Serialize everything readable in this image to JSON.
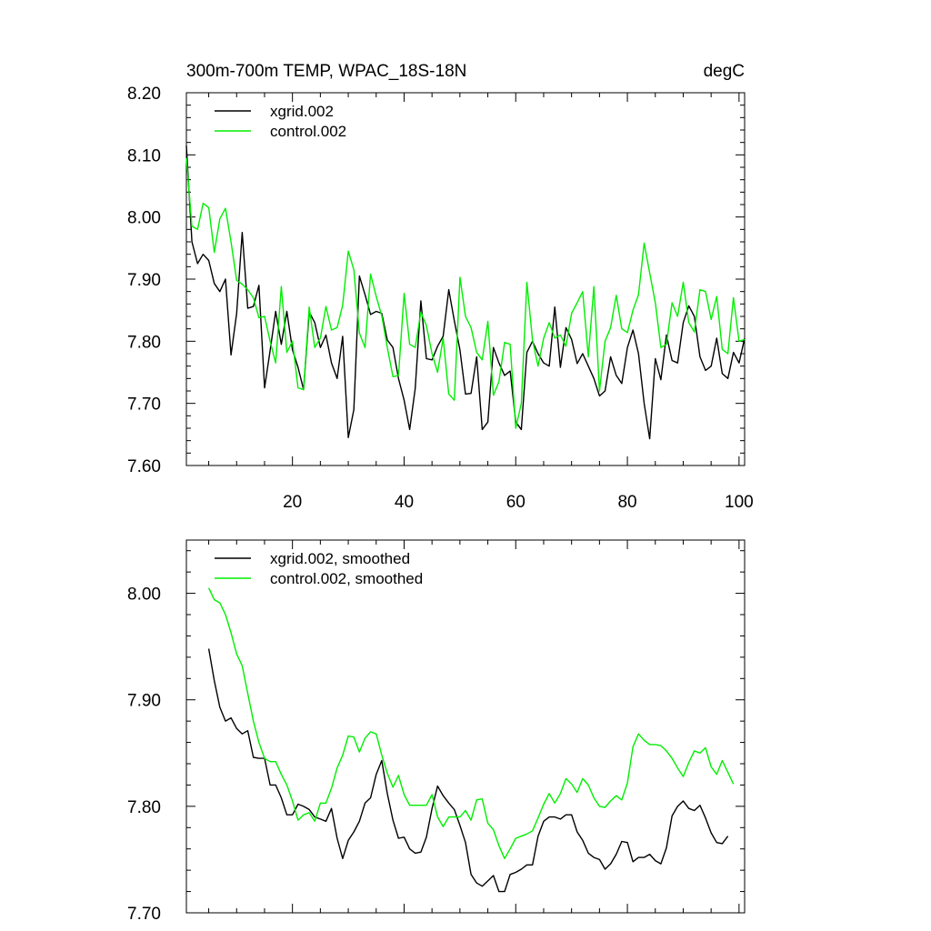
{
  "chart_data": [
    {
      "type": "line",
      "title": "300m-700m TEMP, WPAC_18S-18N",
      "units": "degC",
      "xlim": [
        1,
        101
      ],
      "ylim": [
        7.6,
        8.2
      ],
      "x_ticks": [
        20,
        40,
        60,
        80,
        100
      ],
      "x_tick_labels": [
        "20",
        "40",
        "60",
        "80",
        "100"
      ],
      "y_ticks": [
        7.6,
        7.7,
        7.8,
        7.9,
        8.0,
        8.1,
        8.2
      ],
      "y_tick_labels": [
        "7.60",
        "7.70",
        "7.80",
        "7.90",
        "8.00",
        "8.10",
        "8.20"
      ],
      "legend_position": "top-left",
      "series": [
        {
          "name": "xgrid.002",
          "color": "#000000",
          "x_start": 1,
          "values": [
            8.115,
            7.96,
            7.925,
            7.94,
            7.93,
            7.893,
            7.88,
            7.9,
            7.778,
            7.845,
            7.975,
            7.853,
            7.856,
            7.89,
            7.725,
            7.785,
            7.848,
            7.795,
            7.848,
            7.786,
            7.758,
            7.722,
            7.847,
            7.83,
            7.79,
            7.81,
            7.765,
            7.74,
            7.808,
            7.645,
            7.69,
            7.905,
            7.875,
            7.843,
            7.848,
            7.845,
            7.802,
            7.79,
            7.74,
            7.705,
            7.658,
            7.724,
            7.865,
            7.772,
            7.77,
            7.792,
            7.808,
            7.883,
            7.833,
            7.786,
            7.715,
            7.716,
            7.775,
            7.658,
            7.67,
            7.79,
            7.765,
            7.745,
            7.752,
            7.67,
            7.658,
            7.782,
            7.8,
            7.78,
            7.765,
            7.76,
            7.855,
            7.758,
            7.822,
            7.803,
            7.764,
            7.78,
            7.76,
            7.74,
            7.712,
            7.72,
            7.775,
            7.745,
            7.732,
            7.79,
            7.818,
            7.78,
            7.7,
            7.643,
            7.772,
            7.738,
            7.81,
            7.769,
            7.765,
            7.83,
            7.857,
            7.84,
            7.775,
            7.753,
            7.76,
            7.805,
            7.748,
            7.74,
            7.782,
            7.765,
            7.805
          ]
        },
        {
          "name": "control.002",
          "color": "#00ee00",
          "x_start": 1,
          "values": [
            8.095,
            7.985,
            7.98,
            8.022,
            8.015,
            7.943,
            7.997,
            8.014,
            7.96,
            7.898,
            7.892,
            7.883,
            7.87,
            7.838,
            7.84,
            7.8,
            7.765,
            7.888,
            7.782,
            7.8,
            7.725,
            7.722,
            7.855,
            7.79,
            7.805,
            7.856,
            7.818,
            7.822,
            7.858,
            7.945,
            7.915,
            7.813,
            7.79,
            7.908,
            7.872,
            7.841,
            7.79,
            7.743,
            7.745,
            7.877,
            7.795,
            7.79,
            7.847,
            7.825,
            7.78,
            7.75,
            7.805,
            7.715,
            7.705,
            7.903,
            7.84,
            7.822,
            7.782,
            7.77,
            7.832,
            7.713,
            7.735,
            7.798,
            7.795,
            7.66,
            7.7,
            7.895,
            7.802,
            7.76,
            7.805,
            7.83,
            7.805,
            7.81,
            7.792,
            7.845,
            7.862,
            7.88,
            7.775,
            7.888,
            7.72,
            7.8,
            7.822,
            7.874,
            7.82,
            7.814,
            7.85,
            7.875,
            7.958,
            7.91,
            7.862,
            7.79,
            7.795,
            7.862,
            7.84,
            7.895,
            7.83,
            7.815,
            7.883,
            7.88,
            7.835,
            7.872,
            7.787,
            7.78,
            7.87,
            7.8,
            7.803
          ]
        }
      ]
    },
    {
      "type": "line",
      "title": "",
      "xlim": [
        1,
        101
      ],
      "ylim": [
        7.7,
        8.05
      ],
      "x_ticks": [
        20,
        40,
        60,
        80,
        100
      ],
      "y_ticks": [
        7.7,
        7.8,
        7.9,
        8.0
      ],
      "y_tick_labels": [
        "7.70",
        "7.80",
        "7.90",
        "8.00"
      ],
      "legend_position": "top-left",
      "series": [
        {
          "name": "xgrid.002, smoothed",
          "color": "#000000",
          "x_start": 5,
          "values": [
            7.948,
            7.918,
            7.893,
            7.88,
            7.883,
            7.873,
            7.868,
            7.871,
            7.846,
            7.845,
            7.845,
            7.82,
            7.82,
            7.808,
            7.792,
            7.792,
            7.802,
            7.8,
            7.797,
            7.79,
            7.788,
            7.786,
            7.798,
            7.77,
            7.751,
            7.768,
            7.776,
            7.786,
            7.803,
            7.808,
            7.83,
            7.843,
            7.812,
            7.787,
            7.77,
            7.771,
            7.76,
            7.756,
            7.757,
            7.771,
            7.798,
            7.819,
            7.81,
            7.803,
            7.797,
            7.782,
            7.766,
            7.736,
            7.728,
            7.725,
            7.73,
            7.735,
            7.72,
            7.72,
            7.736,
            7.738,
            7.741,
            7.745,
            7.745,
            7.772,
            7.786,
            7.79,
            7.79,
            7.788,
            7.792,
            7.792,
            7.776,
            7.768,
            7.756,
            7.752,
            7.75,
            7.741,
            7.746,
            7.755,
            7.767,
            7.766,
            7.748,
            7.752,
            7.752,
            7.755,
            7.749,
            7.746,
            7.761,
            7.791,
            7.8,
            7.805,
            7.798,
            7.796,
            7.801,
            7.789,
            7.775,
            7.766,
            7.765,
            7.772
          ]
        },
        {
          "name": "control.002, smoothed",
          "color": "#00ee00",
          "x_start": 5,
          "values": [
            8.005,
            7.994,
            7.991,
            7.98,
            7.963,
            7.943,
            7.932,
            7.906,
            7.88,
            7.86,
            7.845,
            7.842,
            7.842,
            7.83,
            7.82,
            7.805,
            7.787,
            7.792,
            7.794,
            7.786,
            7.803,
            7.803,
            7.817,
            7.836,
            7.848,
            7.866,
            7.865,
            7.851,
            7.864,
            7.87,
            7.868,
            7.848,
            7.831,
            7.818,
            7.829,
            7.811,
            7.801,
            7.801,
            7.801,
            7.801,
            7.811,
            7.79,
            7.781,
            7.79,
            7.79,
            7.79,
            7.796,
            7.787,
            7.806,
            7.807,
            7.784,
            7.778,
            7.763,
            7.751,
            7.76,
            7.77,
            7.772,
            7.774,
            7.777,
            7.789,
            7.802,
            7.812,
            7.803,
            7.812,
            7.826,
            7.821,
            7.813,
            7.826,
            7.82,
            7.808,
            7.8,
            7.799,
            7.805,
            7.81,
            7.806,
            7.822,
            7.856,
            7.868,
            7.862,
            7.858,
            7.858,
            7.857,
            7.852,
            7.845,
            7.836,
            7.828,
            7.841,
            7.852,
            7.85,
            7.855,
            7.837,
            7.83,
            7.843,
            7.832,
            7.821
          ]
        }
      ]
    }
  ]
}
